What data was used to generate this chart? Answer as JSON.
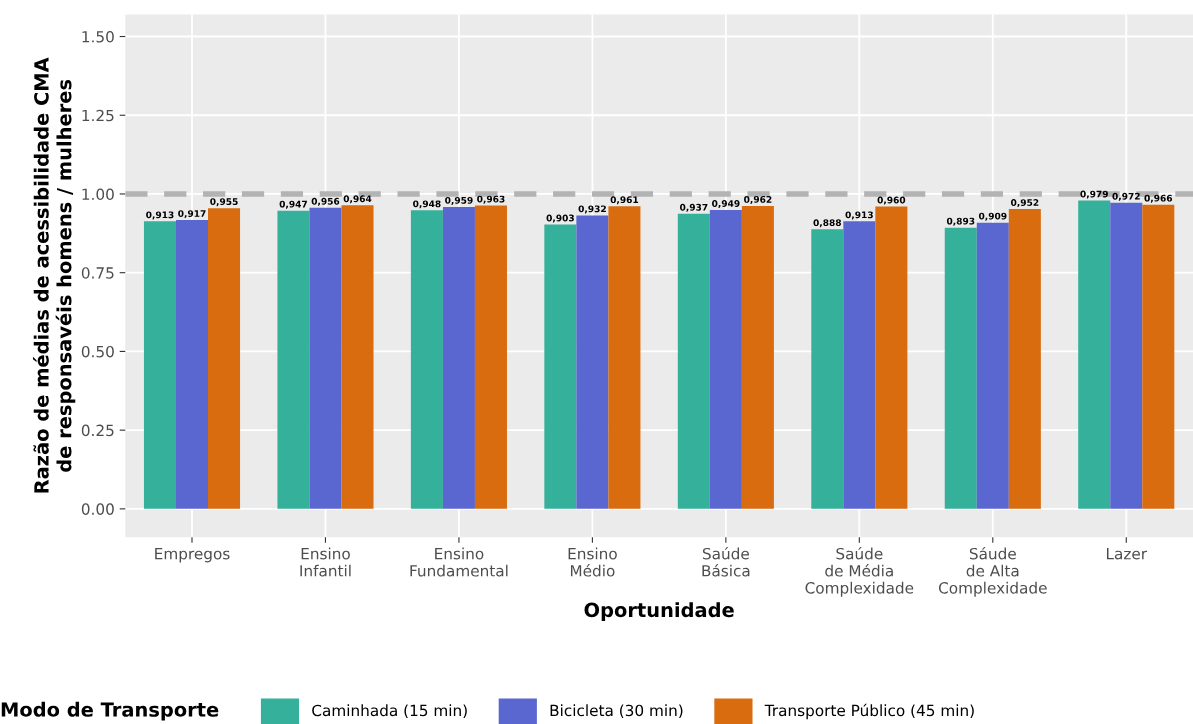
{
  "chart_data": {
    "type": "bar",
    "xlabel": "Oportunidade",
    "ylabel": "Razão de médias de acessibilidade CMA\nde responsavéis homens / mulheres",
    "legend_title": "Modo de Transporte",
    "categories": [
      "Empregos",
      "Ensino\nInfantil",
      "Ensino\nFundamental",
      "Ensino\nMédio",
      "Saúde\nBásica",
      "Saúde\nde Média\nComplexidade",
      "Sáude\nde Alta\nComplexidade",
      "Lazer"
    ],
    "series": [
      {
        "name": "Caminhada (15 min)",
        "color": "#35b09a",
        "values": [
          0.913,
          0.947,
          0.948,
          0.903,
          0.937,
          0.888,
          0.893,
          0.979
        ],
        "value_labels": [
          "0,913",
          "0,947",
          "0,948",
          "0,903",
          "0,937",
          "0,888",
          "0,893",
          "0,979"
        ]
      },
      {
        "name": "Bicicleta (30 min)",
        "color": "#5b67d1",
        "values": [
          0.917,
          0.956,
          0.959,
          0.932,
          0.949,
          0.913,
          0.909,
          0.972
        ],
        "value_labels": [
          "0,917",
          "0,956",
          "0,959",
          "0,932",
          "0,949",
          "0,913",
          "0,909",
          "0,972"
        ]
      },
      {
        "name": "Transporte Público (45 min)",
        "color": "#d86c0f",
        "values": [
          0.955,
          0.964,
          0.963,
          0.961,
          0.962,
          0.96,
          0.952,
          0.966
        ],
        "value_labels": [
          "0,955",
          "0,964",
          "0,963",
          "0,961",
          "0,962",
          "0,960",
          "0,952",
          "0,966"
        ]
      }
    ],
    "ylim": [
      -0.09,
      1.57
    ],
    "yticks": [
      {
        "value": 0,
        "label": "0.00"
      },
      {
        "value": 0.25,
        "label": "0.25"
      },
      {
        "value": 0.5,
        "label": "0.50"
      },
      {
        "value": 0.75,
        "label": "0.75"
      },
      {
        "value": 1,
        "label": "1.00"
      },
      {
        "value": 1.25,
        "label": "1.25"
      },
      {
        "value": 1.5,
        "label": "1.50"
      }
    ],
    "ref_lines": [
      {
        "axis": "y",
        "value": 1,
        "color": "#b3b3b3",
        "line_style": "dashed"
      }
    ],
    "grid": true,
    "legend": "bottom"
  }
}
